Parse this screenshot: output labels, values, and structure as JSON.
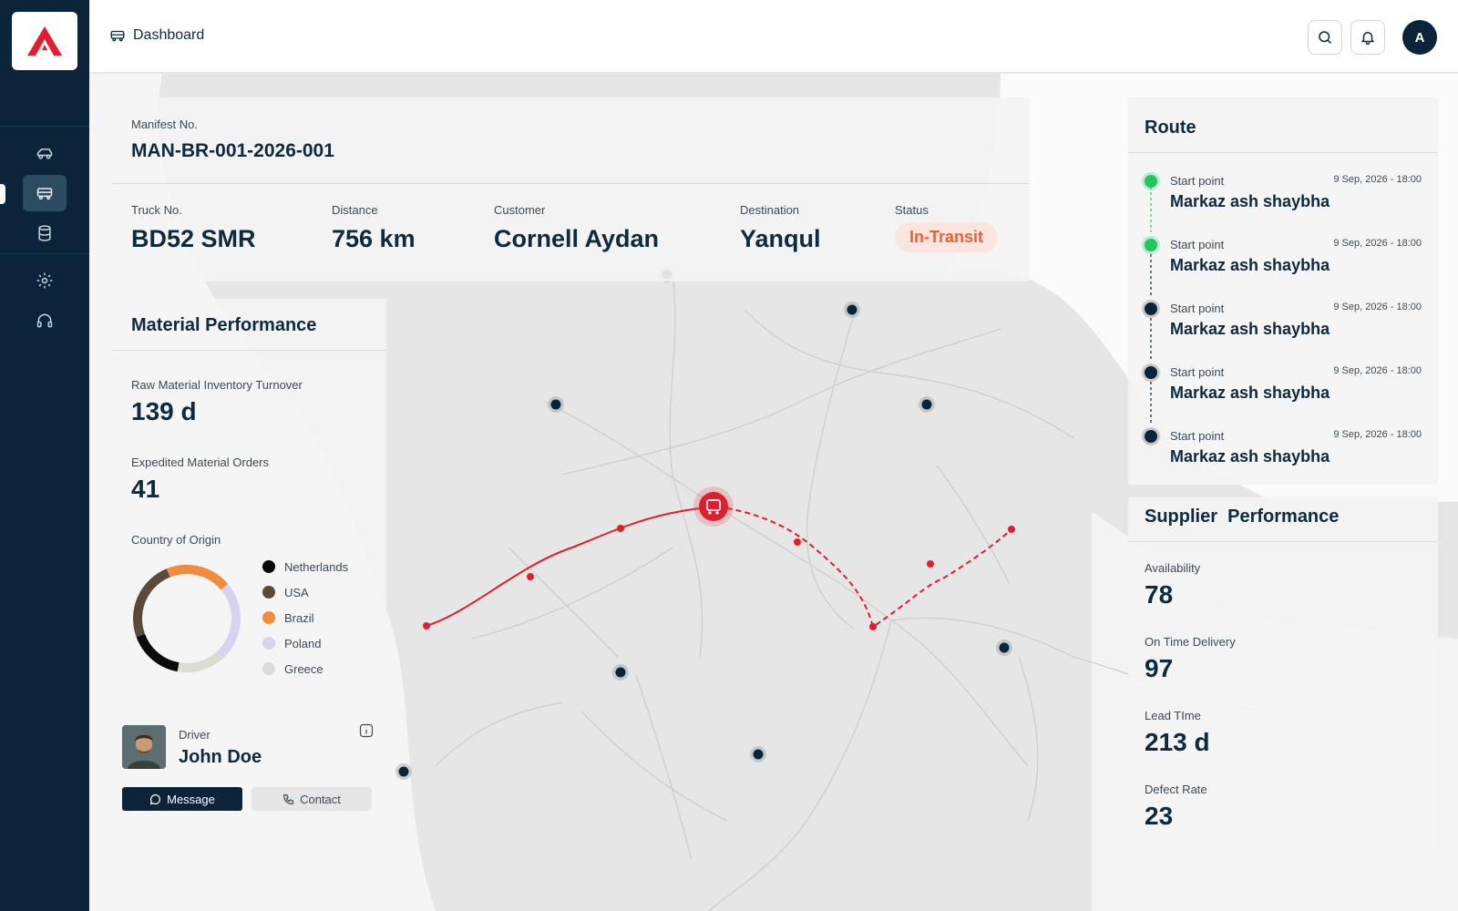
{
  "header": {
    "breadcrumb": "Dashboard",
    "avatar_initial": "A"
  },
  "manifest": {
    "label": "Manifest No.",
    "value": "MAN-BR-001-2026-001",
    "truck_label": "Truck No.",
    "truck": "BD52 SMR",
    "distance_label": "Distance",
    "distance": "756 km",
    "customer_label": "Customer",
    "customer": "Cornell Aydan",
    "destination_label": "Destination",
    "destination": "Yanqul",
    "status_label": "Status",
    "status": "In-Transit"
  },
  "material": {
    "title": "Material Performance",
    "turnover_label": "Raw Material Inventory Turnover",
    "turnover": "139 d",
    "orders_label": "Expedited Material Orders",
    "orders": "41",
    "origin_label": "Country of Origin",
    "origins": [
      {
        "name": "Netherlands",
        "color": "#0a0a0a",
        "share": 0.15
      },
      {
        "name": "USA",
        "color": "#5b4a38",
        "share": 0.22
      },
      {
        "name": "Brazil",
        "color": "#f38b3d",
        "share": 0.18
      },
      {
        "name": "Poland",
        "color": "#d6d3ee",
        "share": 0.22
      },
      {
        "name": "Greece",
        "color": "#dcdcd4",
        "share": 0.13
      }
    ]
  },
  "driver": {
    "label": "Driver",
    "name": "John Doe",
    "message_label": "Message",
    "contact_label": "Contact"
  },
  "route": {
    "title": "Route",
    "stops": [
      {
        "label": "Start point",
        "time": "9 Sep, 2026 - 18:00",
        "place": "Markaz ash shaybha",
        "state": "done",
        "color": "#22c55e"
      },
      {
        "label": "Start point",
        "time": "9 Sep, 2026 - 18:00",
        "place": "Markaz ash shaybha",
        "state": "done",
        "color": "#22c55e"
      },
      {
        "label": "Start point",
        "time": "9 Sep, 2026 - 18:00",
        "place": "Markaz ash shaybha",
        "state": "pending",
        "color": "#0b2439"
      },
      {
        "label": "Start point",
        "time": "9 Sep, 2026 - 18:00",
        "place": "Markaz ash shaybha",
        "state": "pending",
        "color": "#0b2439"
      },
      {
        "label": "Start point",
        "time": "9 Sep, 2026 - 18:00",
        "place": "Markaz ash shaybha",
        "state": "pending",
        "color": "#0b2439"
      }
    ]
  },
  "supplier": {
    "title": "Supplier  Performance",
    "availability_label": "Availability",
    "availability": "78",
    "ontime_label": "On Time Delivery",
    "ontime": "97",
    "lead_label": "Lead TIme",
    "lead": "213 d",
    "defect_label": "Defect Rate",
    "defect": "23"
  },
  "colors": {
    "accent": "#e11d2e",
    "sidebar": "#0b2439",
    "status": "#e8613a"
  },
  "icons": {
    "logo": "brand-logo-icon",
    "nav": [
      "car-icon",
      "truck-icon",
      "database-icon",
      "gear-icon",
      "headset-icon"
    ],
    "header": [
      "search-icon",
      "bell-icon"
    ]
  }
}
